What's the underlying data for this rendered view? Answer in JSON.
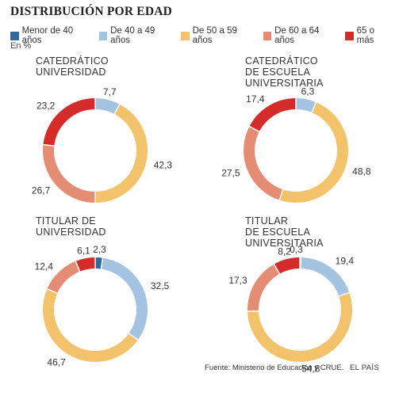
{
  "title": "DISTRIBUCIÓN POR EDAD",
  "unit": "En %",
  "legend": [
    {
      "label": "Menor de 40 años",
      "color": "#2e6b9c"
    },
    {
      "label": "De 40 a 49 años",
      "color": "#a3c3e0"
    },
    {
      "label": "De 50 a 59 años",
      "color": "#f2c36b"
    },
    {
      "label": "De 60 a 64 años",
      "color": "#e48d74"
    },
    {
      "label": "65 o más",
      "color": "#d42b2b"
    }
  ],
  "chart_data": [
    {
      "type": "pie",
      "title": "CATEDRÁTICO\nUNIVERSIDAD",
      "categories": [
        "Menor de 40 años",
        "De 40 a 49 años",
        "De 50 a 59 años",
        "De 60 a 64 años",
        "65 o más"
      ],
      "values": [
        0,
        7.7,
        42.3,
        26.7,
        23.2
      ],
      "labels": [
        "",
        "7,7",
        "42,3",
        "26,7",
        "23,2"
      ]
    },
    {
      "type": "pie",
      "title": "CATEDRÁTICO\nDE ESCUELA\nUNIVERSITARIA",
      "categories": [
        "Menor de 40 años",
        "De 40 a 49 años",
        "De 50 a 59 años",
        "De 60 a 64 años",
        "65 o más"
      ],
      "values": [
        0,
        6.3,
        48.8,
        27.5,
        17.4
      ],
      "labels": [
        "",
        "6,3",
        "48,8",
        "27,5",
        "17,4"
      ]
    },
    {
      "type": "pie",
      "title": "TITULAR DE\nUNIVERSIDAD",
      "categories": [
        "Menor de 40 años",
        "De 40 a 49 años",
        "De 50 a 59 años",
        "De 60 a 64 años",
        "65 o más"
      ],
      "values": [
        2.3,
        32.5,
        46.7,
        12.4,
        6.1
      ],
      "labels": [
        "2,3",
        "32,5",
        "46,7",
        "12,4",
        "6,1"
      ]
    },
    {
      "type": "pie",
      "title": "TITULAR\nDE ESCUELA\nUNIVERSITARIA",
      "categories": [
        "Menor de 40 años",
        "De 40 a 49 años",
        "De 50 a 59 años",
        "De 60 a 64 años",
        "65 o más"
      ],
      "values": [
        0.3,
        19.4,
        54.8,
        17.3,
        8.2
      ],
      "labels": [
        "0,3",
        "19,4",
        "54,8",
        "17,3",
        "8,2"
      ]
    }
  ],
  "source": "Fuente: Ministerio de Educación y CRUE.",
  "brand": "EL PAÍS"
}
